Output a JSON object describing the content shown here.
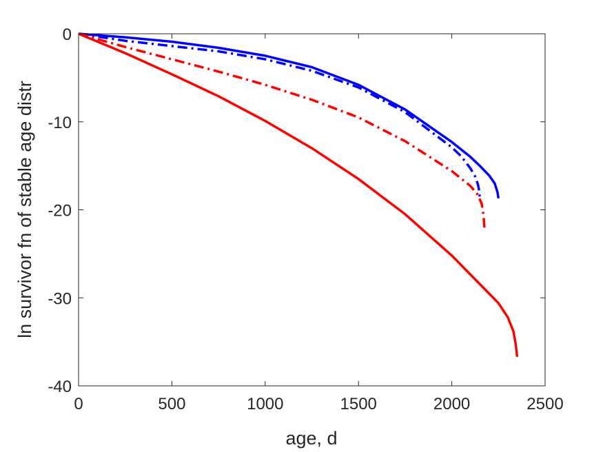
{
  "chart_data": {
    "type": "line",
    "title": "",
    "xlabel": "age, d",
    "ylabel": "ln survivor fn of stable age distr",
    "xlim": [
      0,
      2500
    ],
    "ylim": [
      -40,
      0
    ],
    "xticks": [
      0,
      500,
      1000,
      1500,
      2000,
      2500
    ],
    "yticks": [
      0,
      -10,
      -20,
      -30,
      -40
    ],
    "xtick_labels": [
      "0",
      "500",
      "1000",
      "1500",
      "2000",
      "2500"
    ],
    "ytick_labels": [
      "0",
      "-10",
      "-20",
      "-30",
      "-40"
    ],
    "grid": false,
    "legend": "none",
    "series": [
      {
        "color": "#0000ff",
        "style": "solid",
        "x": [
          0,
          250,
          500,
          750,
          1000,
          1250,
          1500,
          1750,
          2000,
          2100,
          2150,
          2200,
          2230,
          2245,
          2250
        ],
        "y": [
          0,
          -0.4,
          -0.9,
          -1.6,
          -2.5,
          -3.8,
          -5.8,
          -8.6,
          -12.3,
          -14.0,
          -15.0,
          -16.1,
          -17.0,
          -18.0,
          -18.7
        ]
      },
      {
        "color": "#0000ff",
        "style": "dashdot",
        "x": [
          0,
          250,
          500,
          750,
          1000,
          1250,
          1500,
          1750,
          2000,
          2050,
          2100,
          2125,
          2140,
          2148,
          2150
        ],
        "y": [
          0,
          -0.8,
          -1.4,
          -2.0,
          -2.9,
          -4.2,
          -6.1,
          -8.9,
          -12.9,
          -13.9,
          -15.3,
          -16.2,
          -17.1,
          -18.0,
          -18.8
        ]
      },
      {
        "color": "#ff0000",
        "style": "dashdot",
        "x": [
          0,
          250,
          500,
          750,
          1000,
          1250,
          1500,
          1750,
          2000,
          2100,
          2140,
          2160,
          2170,
          2175
        ],
        "y": [
          0,
          -1.5,
          -2.9,
          -4.3,
          -5.8,
          -7.5,
          -9.5,
          -12.2,
          -15.6,
          -17.3,
          -18.3,
          -19.3,
          -20.6,
          -22.1
        ]
      },
      {
        "color": "#ff0000",
        "style": "solid",
        "x": [
          0,
          250,
          500,
          750,
          1000,
          1250,
          1500,
          1750,
          2000,
          2250,
          2300,
          2330,
          2342,
          2350
        ],
        "y": [
          0,
          -2.2,
          -4.6,
          -7.1,
          -9.9,
          -13.0,
          -16.5,
          -20.5,
          -25.2,
          -30.6,
          -32.2,
          -33.8,
          -35.2,
          -36.7
        ]
      }
    ]
  }
}
